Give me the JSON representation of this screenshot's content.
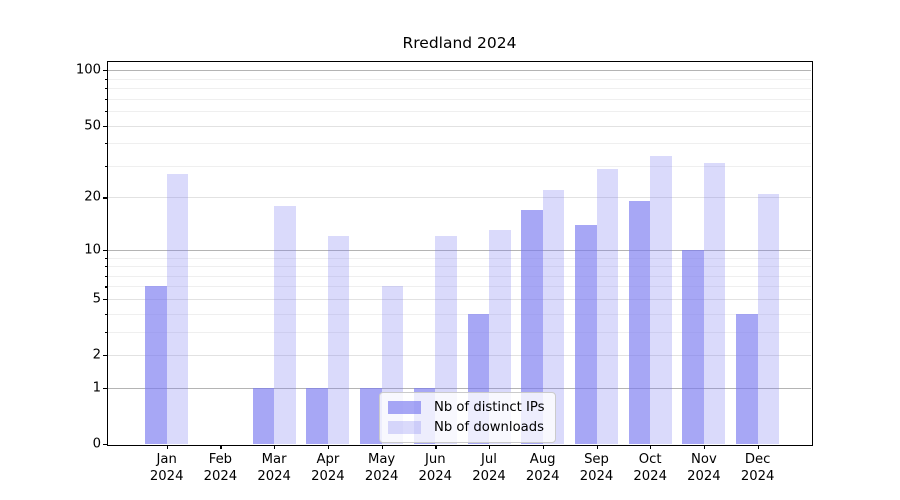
{
  "chart_data": {
    "type": "bar",
    "title": "Rredland 2024",
    "categories": [
      "Jan 2024",
      "Feb 2024",
      "Mar 2024",
      "Apr 2024",
      "May 2024",
      "Jun 2024",
      "Jul 2024",
      "Aug 2024",
      "Sep 2024",
      "Oct 2024",
      "Nov 2024",
      "Dec 2024"
    ],
    "series": [
      {
        "name": "Nb of distinct IPs",
        "values": [
          6,
          0,
          1,
          1,
          1,
          1,
          4,
          17,
          14,
          19,
          10,
          4
        ],
        "fill": "rgba(120,120,240,0.65)"
      },
      {
        "name": "Nb of downloads",
        "values": [
          27,
          0,
          18,
          12,
          6,
          12,
          13,
          22,
          29,
          34,
          31,
          21
        ],
        "fill": "rgba(120,120,240,0.27)"
      }
    ],
    "xlabel": "",
    "ylabel": "",
    "yscale": "log1p",
    "ylim": [
      0,
      112
    ],
    "yticks": [
      0,
      1,
      2,
      5,
      10,
      20,
      50,
      100
    ],
    "ygrid_major": [
      1,
      10,
      100
    ],
    "ygrid_mid": [
      2,
      5,
      20,
      50
    ],
    "ygrid_minor": [
      3,
      4,
      6,
      7,
      8,
      9,
      30,
      40,
      60,
      70,
      80,
      90
    ],
    "grid": true,
    "legend_position": "lower center inside axes",
    "colors": {
      "bar_base": "#7878f0",
      "grid_major": "#b4b4b4",
      "grid_mid": "#e2e2e2",
      "grid_minor": "#efefef",
      "axis": "#000000",
      "legend_border": "#cbcbcb"
    }
  }
}
